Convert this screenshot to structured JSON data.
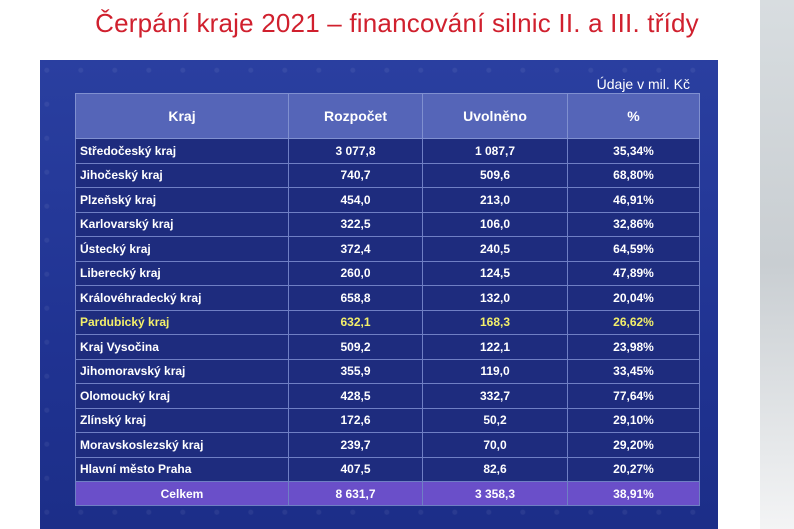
{
  "title": "Čerpání kraje 2021 – financování silnic II. a III. třídy",
  "unit_note": "Údaje v mil. Kč",
  "headers": [
    "Kraj",
    "Rozpočet",
    "Uvolněno",
    "%"
  ],
  "rows": [
    {
      "kraj": "Středočeský kraj",
      "rozpocet": "3 077,8",
      "uvolneno": "1 087,7",
      "pct": "35,34%"
    },
    {
      "kraj": "Jihočeský kraj",
      "rozpocet": "740,7",
      "uvolneno": "509,6",
      "pct": "68,80%"
    },
    {
      "kraj": "Plzeňský kraj",
      "rozpocet": "454,0",
      "uvolneno": "213,0",
      "pct": "46,91%"
    },
    {
      "kraj": "Karlovarský kraj",
      "rozpocet": "322,5",
      "uvolneno": "106,0",
      "pct": "32,86%"
    },
    {
      "kraj": "Ústecký kraj",
      "rozpocet": "372,4",
      "uvolneno": "240,5",
      "pct": "64,59%"
    },
    {
      "kraj": "Liberecký kraj",
      "rozpocet": "260,0",
      "uvolneno": "124,5",
      "pct": "47,89%"
    },
    {
      "kraj": "Královéhradecký kraj",
      "rozpocet": "658,8",
      "uvolneno": "132,0",
      "pct": "20,04%"
    },
    {
      "kraj": "Pardubický kraj",
      "rozpocet": "632,1",
      "uvolneno": "168,3",
      "pct": "26,62%",
      "highlight": true
    },
    {
      "kraj": "Kraj Vysočina",
      "rozpocet": "509,2",
      "uvolneno": "122,1",
      "pct": "23,98%"
    },
    {
      "kraj": "Jihomoravský kraj",
      "rozpocet": "355,9",
      "uvolneno": "119,0",
      "pct": "33,45%"
    },
    {
      "kraj": "Olomoucký kraj",
      "rozpocet": "428,5",
      "uvolneno": "332,7",
      "pct": "77,64%"
    },
    {
      "kraj": "Zlínský kraj",
      "rozpocet": "172,6",
      "uvolneno": "50,2",
      "pct": "29,10%"
    },
    {
      "kraj": "Moravskoslezský kraj",
      "rozpocet": "239,7",
      "uvolneno": "70,0",
      "pct": "29,20%"
    },
    {
      "kraj": "Hlavní město Praha",
      "rozpocet": "407,5",
      "uvolneno": "82,6",
      "pct": "20,27%"
    }
  ],
  "total": {
    "kraj": "Celkem",
    "rozpocet": "8 631,7",
    "uvolneno": "3 358,3",
    "pct": "38,91%"
  },
  "colors": {
    "title": "#d0202e",
    "highlight_text": "#f3ef6a",
    "total_row": "#6a4fc9"
  }
}
